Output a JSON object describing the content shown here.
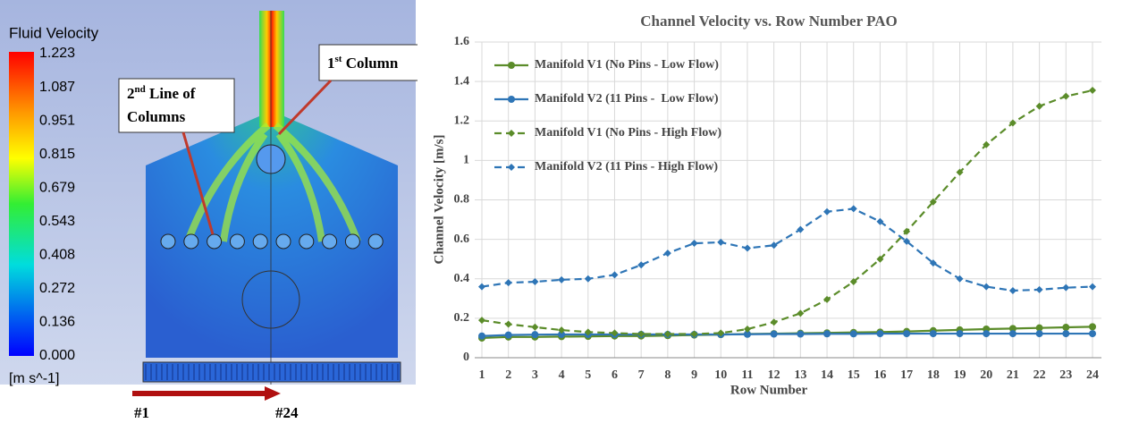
{
  "cfd_image": {
    "colorbar_title": "Fluid Velocity",
    "colorbar_labels": [
      "1.223",
      "1.087",
      "0.951",
      "0.815",
      "0.679",
      "0.543",
      "0.408",
      "0.272",
      "0.136",
      "0.000"
    ],
    "colorbar_unit": "[m s^-1]",
    "first_column_label": [
      "1",
      "st",
      " Column"
    ],
    "second_line_label": [
      "2",
      "nd",
      " Line of",
      "Columns"
    ],
    "start_label": "#1",
    "end_label": "#24"
  },
  "chart_data": {
    "type": "line",
    "title": "Channel Velocity vs. Row Number PAO",
    "x_label": "Row Number",
    "y_label": "Channel Velocity [m/s]",
    "x": [
      1,
      2,
      3,
      4,
      5,
      6,
      7,
      8,
      9,
      10,
      11,
      12,
      13,
      14,
      15,
      16,
      17,
      18,
      19,
      20,
      21,
      22,
      23,
      24
    ],
    "xlim": [
      1,
      24
    ],
    "ylim": [
      0,
      1.6
    ],
    "yticks": [
      0,
      0.2,
      0.4,
      0.6,
      0.8,
      1,
      1.2,
      1.4,
      1.6
    ],
    "grid": true,
    "legend": "upper left",
    "series": [
      {
        "name": "Manifold V1 (No Pins - Low Flow)",
        "color": "#5b8c2a",
        "dash": false,
        "marker": "circle",
        "values": [
          0.1,
          0.105,
          0.105,
          0.107,
          0.108,
          0.11,
          0.11,
          0.112,
          0.115,
          0.117,
          0.12,
          0.122,
          0.124,
          0.126,
          0.128,
          0.13,
          0.133,
          0.137,
          0.141,
          0.145,
          0.148,
          0.151,
          0.154,
          0.157
        ]
      },
      {
        "name": "Manifold V2 (11 Pins -  Low Flow)",
        "color": "#2e75b6",
        "dash": false,
        "marker": "circle",
        "values": [
          0.11,
          0.115,
          0.117,
          0.118,
          0.118,
          0.118,
          0.118,
          0.118,
          0.118,
          0.118,
          0.119,
          0.12,
          0.12,
          0.121,
          0.121,
          0.122,
          0.122,
          0.122,
          0.122,
          0.122,
          0.122,
          0.122,
          0.122,
          0.122
        ]
      },
      {
        "name": "Manifold V1 (No Pins - High Flow)",
        "color": "#5b8c2a",
        "dash": true,
        "marker": "diamond",
        "values": [
          0.19,
          0.17,
          0.155,
          0.14,
          0.13,
          0.125,
          0.12,
          0.12,
          0.12,
          0.125,
          0.145,
          0.18,
          0.225,
          0.295,
          0.385,
          0.5,
          0.64,
          0.79,
          0.94,
          1.08,
          1.19,
          1.275,
          1.325,
          1.355
        ]
      },
      {
        "name": "Manifold V2 (11 Pins - High Flow)",
        "color": "#2e75b6",
        "dash": true,
        "marker": "diamond",
        "values": [
          0.36,
          0.38,
          0.385,
          0.395,
          0.4,
          0.42,
          0.47,
          0.53,
          0.58,
          0.585,
          0.555,
          0.57,
          0.65,
          0.74,
          0.755,
          0.69,
          0.59,
          0.48,
          0.4,
          0.36,
          0.34,
          0.345,
          0.355,
          0.36
        ]
      }
    ]
  }
}
